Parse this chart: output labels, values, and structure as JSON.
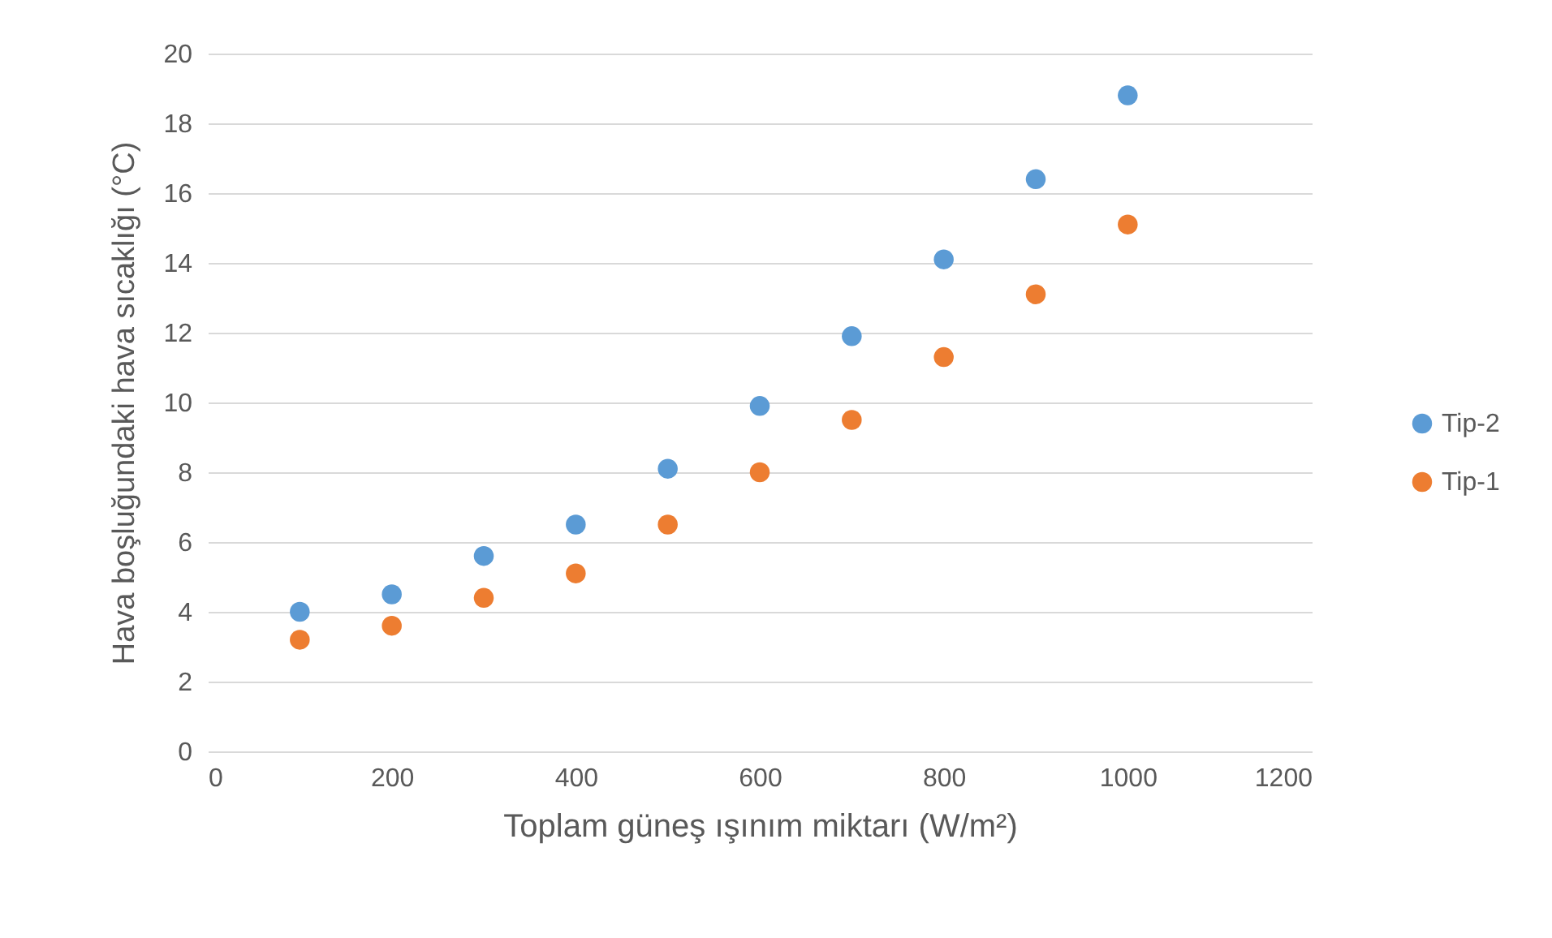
{
  "chart_data": {
    "type": "scatter",
    "xlabel": "Toplam güneş ışınım miktarı  (W/m²)",
    "ylabel": "Hava boşluğundaki hava sıcaklığı (°C)",
    "x": [
      100,
      200,
      300,
      400,
      500,
      600,
      700,
      800,
      900,
      1000
    ],
    "series": [
      {
        "name": "Tip-2",
        "color": "#5b9bd5",
        "values": [
          4.0,
          4.5,
          5.6,
          6.5,
          8.1,
          9.9,
          11.9,
          14.1,
          16.4,
          18.8
        ]
      },
      {
        "name": "Tip-1",
        "color": "#ed7d31",
        "values": [
          3.2,
          3.6,
          4.4,
          5.1,
          6.5,
          8.0,
          9.5,
          11.3,
          13.1,
          15.1
        ]
      }
    ],
    "xlim": [
      0,
      1200
    ],
    "xticks": [
      0,
      200,
      400,
      600,
      800,
      1000,
      1200
    ],
    "ylim": [
      0,
      20
    ],
    "yticks": [
      0,
      2,
      4,
      6,
      8,
      10,
      12,
      14,
      16,
      18,
      20
    ],
    "grid": "y",
    "legend": "right",
    "marker": "circle"
  }
}
